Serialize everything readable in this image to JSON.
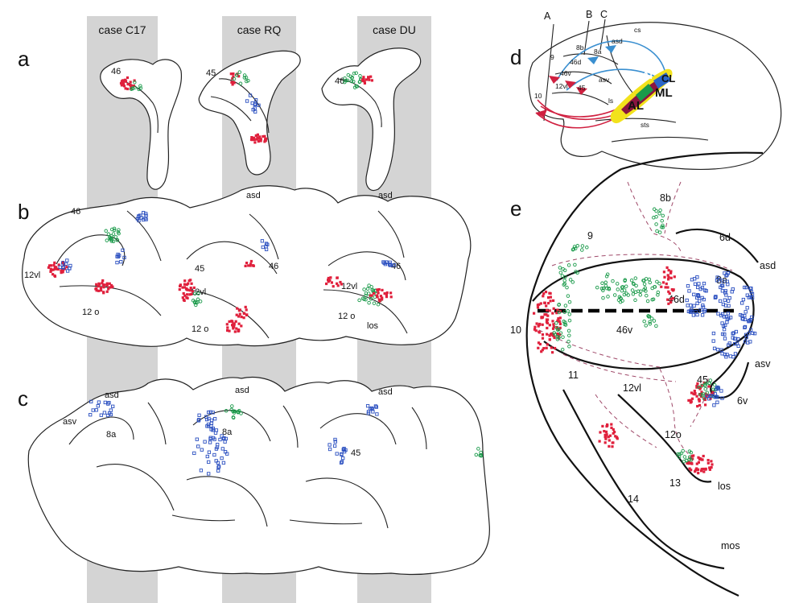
{
  "panels": {
    "a": "a",
    "b": "b",
    "c": "c",
    "d": "d",
    "e": "e"
  },
  "cases": [
    "case C17",
    "case RQ",
    "case DU"
  ],
  "row_a": {
    "c17_area": "46",
    "rq_area": "45",
    "du_area": "46"
  },
  "row_b": {
    "c17_46": "46",
    "c17_12vl": "12vl",
    "c17_12o": "12 o",
    "rq_asd": "asd",
    "rq_45": "45",
    "rq_46": "46",
    "rq_12vl": "12vl",
    "rq_12o": "12 o",
    "du_asd": "asd",
    "du_46": "46",
    "du_12vl": "12vl",
    "du_12o": "12 o",
    "du_los": "los"
  },
  "row_c": {
    "c17_asd": "asd",
    "c17_asv": "asv",
    "c17_8a": "8a",
    "rq_asd": "asd",
    "rq_8a": "8a",
    "du_asd": "asd",
    "du_45": "45"
  },
  "brain_d": {
    "A": "A",
    "B": "B",
    "C": "C",
    "cs": "cs",
    "asd": "asd",
    "8b": "8b",
    "8a": "8a",
    "9": "9",
    "46d": "46d",
    "46v": "46v",
    "asv": "asv",
    "12vl": "12vl",
    "45": "45",
    "10": "10",
    "ls": "ls",
    "sts": "sts",
    "AL": "AL",
    "ML": "ML",
    "Al": "Al",
    "CL": "CL"
  },
  "map_e": {
    "8b": "8b",
    "9": "9",
    "6d": "6d",
    "asd": "asd",
    "8a": "8a",
    "46d": "46d",
    "10": "10",
    "46v": "46v",
    "asv": "asv",
    "45": "45",
    "11": "11",
    "12vl": "12vl",
    "6v": "6v",
    "12o": "12o",
    "13": "13",
    "los": "los",
    "14": "14",
    "mos": "mos"
  },
  "colors": {
    "red": "#e0203c",
    "green": "#1a9a4a",
    "blue": "#2a4fc0",
    "yellow": "#f2e21c",
    "band": "#d4d4d4"
  }
}
